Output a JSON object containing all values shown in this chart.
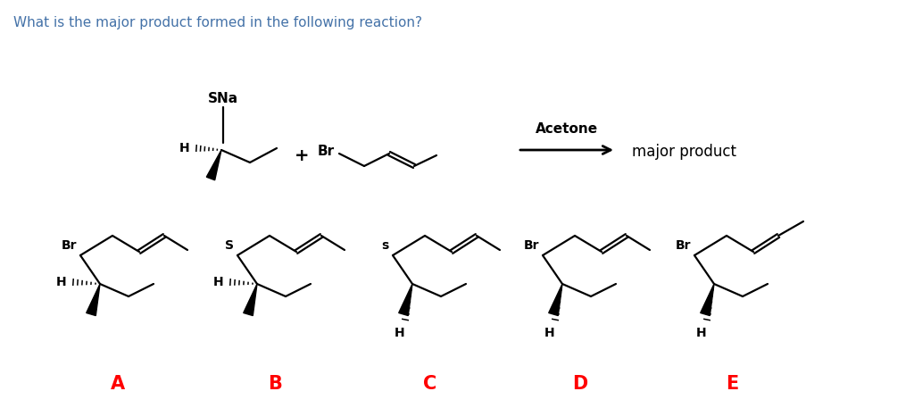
{
  "title": "What is the major product formed in the following reaction?",
  "title_color": "#4472a8",
  "title_fontsize": 11,
  "background_color": "#ffffff",
  "label_color": "#ff0000",
  "label_fontsize": 15,
  "acetone_text": "Acetone",
  "major_product_text": "major product",
  "SNa_text": "SNa",
  "plus_text": "+",
  "Br_text": "Br",
  "H_text": "H",
  "S_text": "S",
  "s_text": "s"
}
